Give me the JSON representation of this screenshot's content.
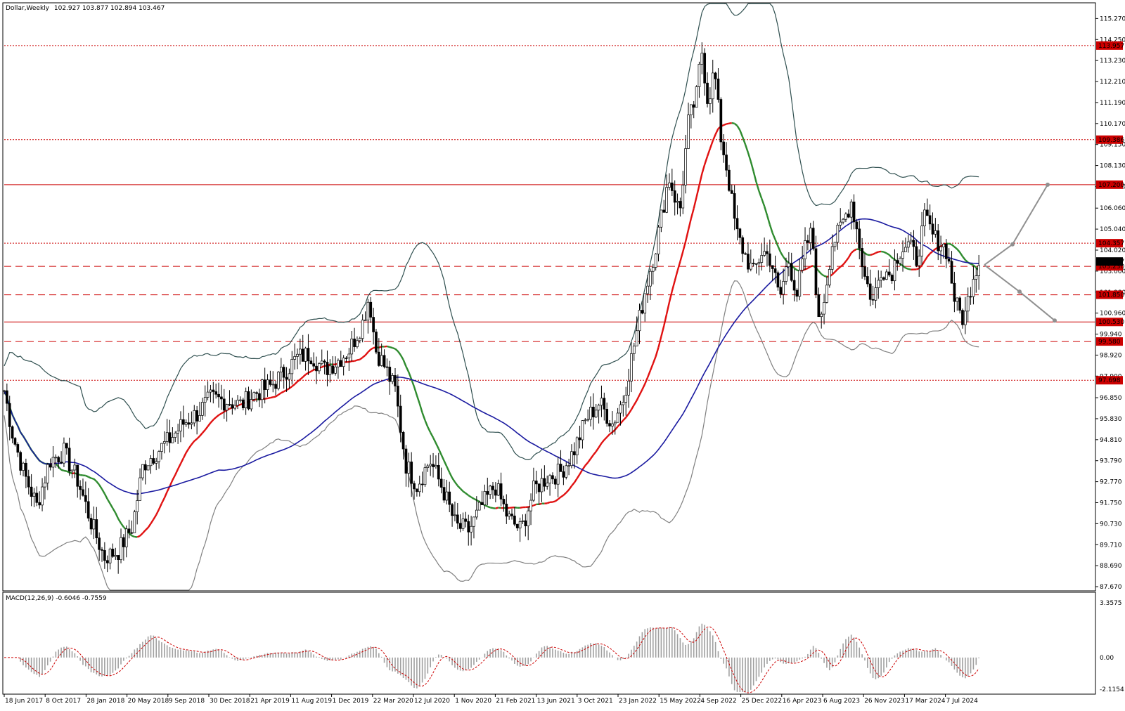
{
  "header": {
    "symbol_title": "Dollar,Weekly",
    "ohlc": "102.927 103.877 102.894 103.467"
  },
  "macd": {
    "label": "MACD(12,26,9) -0.6046 -0.7559",
    "scale": [
      "3.3575",
      "0.00",
      "-2.1154"
    ]
  },
  "colors": {
    "bullish": "#ffffff",
    "bearish": "#000000",
    "ma_red": "#e01010",
    "ma_blue": "#1a1aa0",
    "ma_green": "#2e8b2e",
    "bollinger": "#2f4f4f",
    "bollinger_lower": "#808080",
    "level_red": "#cc0000",
    "macd_hist": "#a0a0a0",
    "macd_signal": "#cc0000",
    "arrows": "#909090"
  },
  "chart_data": {
    "type": "candlestick",
    "title": "Dollar,Weekly",
    "ylim": [
      87.5,
      116.0
    ],
    "price_axis_ticks": [
      "115.270",
      "114.250",
      "113.230",
      "112.210",
      "111.190",
      "110.170",
      "109.150",
      "108.130",
      "107.110",
      "106.060",
      "105.040",
      "104.020",
      "103.000",
      "101.980",
      "100.960",
      "99.940",
      "98.920",
      "97.900",
      "96.850",
      "95.830",
      "94.810",
      "93.790",
      "92.770",
      "91.750",
      "90.730",
      "89.710",
      "88.690",
      "87.670"
    ],
    "date_axis_ticks": [
      "18 Jun 2017",
      "8 Oct 2017",
      "28 Jan 2018",
      "20 May 2018",
      "9 Sep 2018",
      "30 Dec 2018",
      "21 Apr 2019",
      "11 Aug 2019",
      "1 Dec 2019",
      "22 Mar 2020",
      "12 Jul 2020",
      "1 Nov 2020",
      "21 Feb 2021",
      "13 Jun 2021",
      "3 Oct 2021",
      "23 Jan 2022",
      "15 May 2022",
      "4 Sep 2022",
      "25 Dec 2022",
      "16 Apr 2023",
      "6 Aug 2023",
      "26 Nov 2023",
      "17 Mar 2024",
      "7 Jul 2024"
    ],
    "price_levels": [
      {
        "value": 113.957,
        "label": "113.957",
        "style": "dotted"
      },
      {
        "value": 109.386,
        "label": "109.386",
        "style": "dotted"
      },
      {
        "value": 107.2,
        "label": "107.200",
        "style": "solid"
      },
      {
        "value": 104.357,
        "label": "104.357",
        "style": "dotted"
      },
      {
        "value": 103.23,
        "label": "103.230",
        "style": "dashed"
      },
      {
        "value": 101.85,
        "label": "101.850",
        "style": "dashed"
      },
      {
        "value": 100.53,
        "label": "100.530",
        "style": "solid"
      },
      {
        "value": 99.58,
        "label": "99.580",
        "style": "dashed"
      },
      {
        "value": 97.698,
        "label": "97.698",
        "style": "dotted"
      }
    ],
    "current_price": {
      "value": 103.467,
      "label": "103.467"
    },
    "close_path": [
      [
        0,
        97.2
      ],
      [
        8,
        95.0
      ],
      [
        18,
        93.2
      ],
      [
        30,
        91.6
      ],
      [
        42,
        93.8
      ],
      [
        55,
        94.2
      ],
      [
        68,
        92.8
      ],
      [
        80,
        90.8
      ],
      [
        92,
        89.1
      ],
      [
        105,
        89.4
      ],
      [
        118,
        90.6
      ],
      [
        128,
        93.6
      ],
      [
        140,
        94.2
      ],
      [
        152,
        94.8
      ],
      [
        165,
        95.6
      ],
      [
        178,
        96.1
      ],
      [
        190,
        96.8
      ],
      [
        205,
        96.7
      ],
      [
        218,
        96.5
      ],
      [
        232,
        97.1
      ],
      [
        245,
        97.4
      ],
      [
        258,
        98.1
      ],
      [
        270,
        98.8
      ],
      [
        282,
        99.0
      ],
      [
        294,
        98.2
      ],
      [
        306,
        98.6
      ],
      [
        318,
        99.2
      ],
      [
        330,
        100.5
      ],
      [
        336,
        101.8
      ],
      [
        342,
        99.2
      ],
      [
        350,
        98.4
      ],
      [
        360,
        97.2
      ],
      [
        370,
        93.6
      ],
      [
        380,
        92.6
      ],
      [
        392,
        93.8
      ],
      [
        404,
        92.4
      ],
      [
        416,
        90.6
      ],
      [
        428,
        90.4
      ],
      [
        440,
        91.6
      ],
      [
        452,
        92.6
      ],
      [
        464,
        91.0
      ],
      [
        476,
        90.4
      ],
      [
        488,
        92.4
      ],
      [
        500,
        93.0
      ],
      [
        512,
        93.2
      ],
      [
        524,
        94.2
      ],
      [
        536,
        95.8
      ],
      [
        548,
        96.6
      ],
      [
        560,
        95.6
      ],
      [
        570,
        96.8
      ],
      [
        580,
        99.4
      ],
      [
        590,
        102.0
      ],
      [
        600,
        104.2
      ],
      [
        612,
        107.6
      ],
      [
        622,
        105.8
      ],
      [
        630,
        110.2
      ],
      [
        638,
        111.6
      ],
      [
        642,
        113.9
      ],
      [
        648,
        111.2
      ],
      [
        654,
        112.8
      ],
      [
        660,
        109.5
      ],
      [
        666,
        107.8
      ],
      [
        674,
        104.9
      ],
      [
        682,
        103.8
      ],
      [
        690,
        102.9
      ],
      [
        698,
        104.0
      ],
      [
        706,
        103.6
      ],
      [
        714,
        101.6
      ],
      [
        722,
        103.6
      ],
      [
        730,
        101.9
      ],
      [
        738,
        104.2
      ],
      [
        744,
        104.9
      ],
      [
        750,
        100.4
      ],
      [
        756,
        102.0
      ],
      [
        762,
        104.3
      ],
      [
        768,
        104.8
      ],
      [
        774,
        105.6
      ],
      [
        780,
        106.4
      ],
      [
        786,
        104.8
      ],
      [
        792,
        102.8
      ],
      [
        800,
        101.5
      ],
      [
        808,
        103.2
      ],
      [
        816,
        102.8
      ],
      [
        824,
        104.0
      ],
      [
        832,
        104.3
      ],
      [
        840,
        103.6
      ],
      [
        848,
        105.6
      ],
      [
        856,
        104.6
      ],
      [
        862,
        104.4
      ],
      [
        868,
        104.0
      ],
      [
        876,
        101.4
      ],
      [
        884,
        100.6
      ],
      [
        892,
        102.8
      ],
      [
        898,
        103.5
      ]
    ],
    "series": [
      {
        "name": "",
        "color": "ma_red",
        "values": []
      }
    ]
  }
}
